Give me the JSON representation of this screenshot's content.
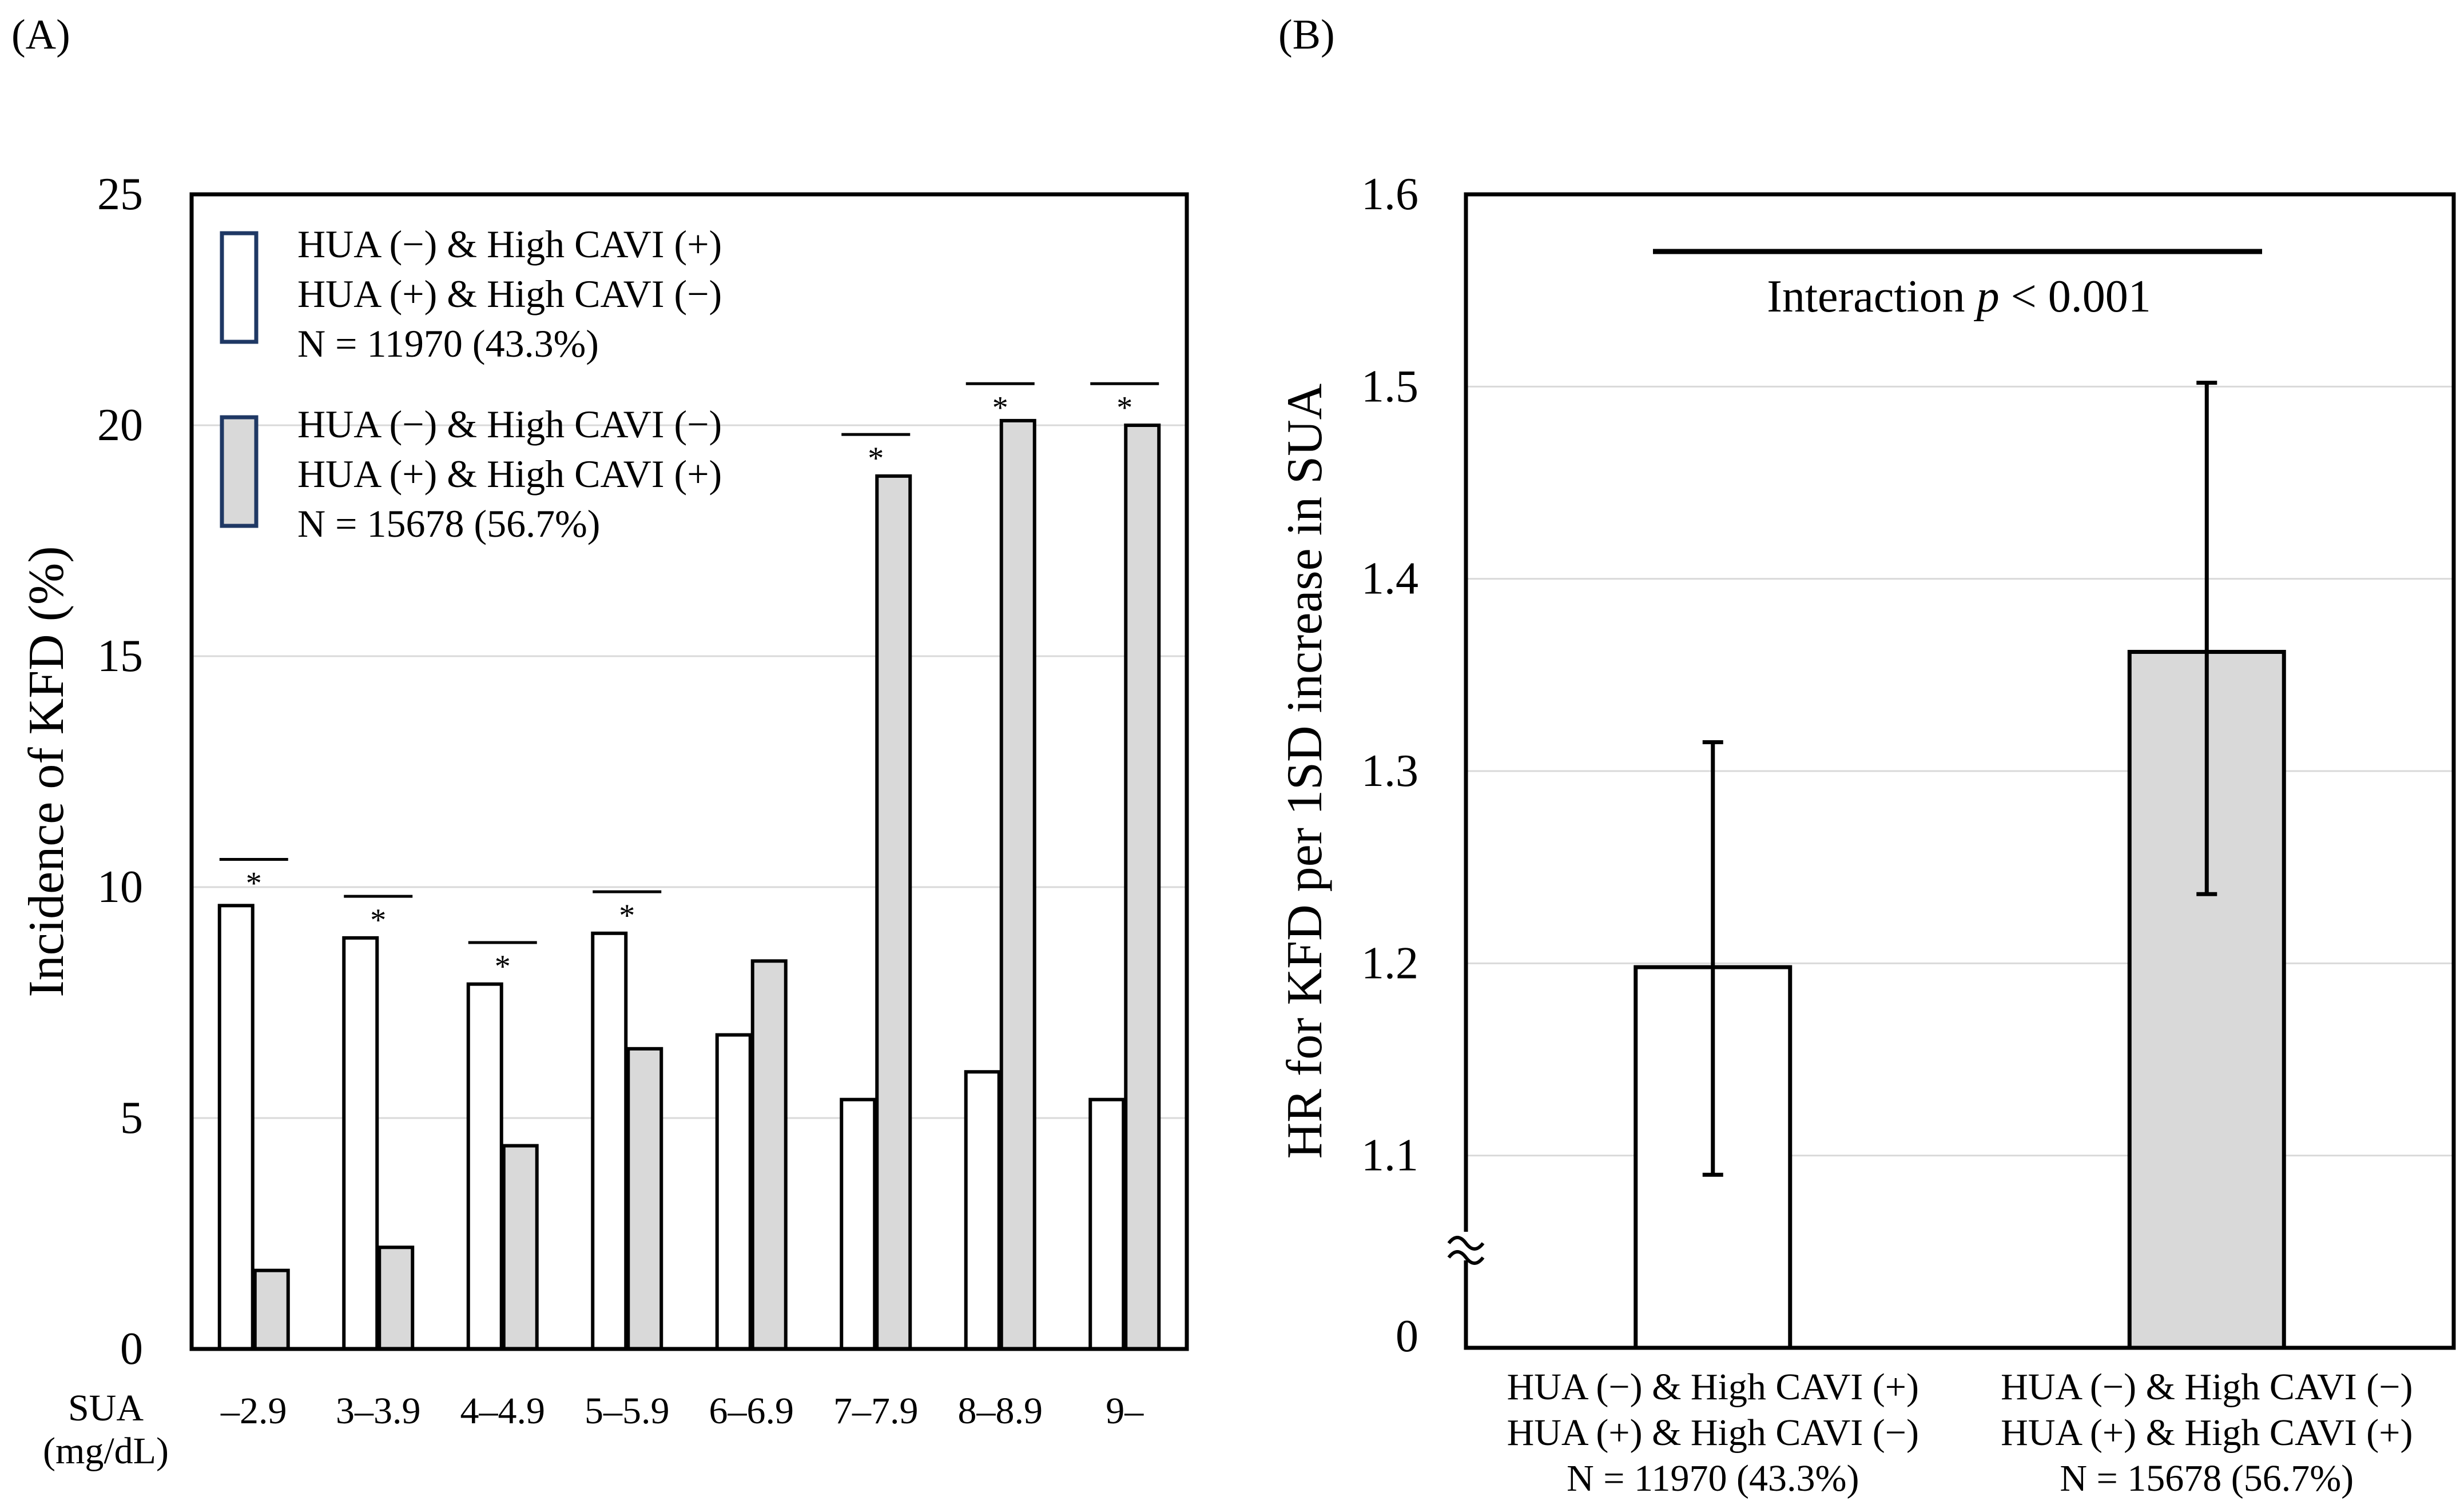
{
  "chart_data": [
    {
      "panel_label": "(A)",
      "type": "bar",
      "title": "",
      "xlabel": "SUA (mg/dL)",
      "xlabel_lines": [
        "SUA",
        "(mg/dL)"
      ],
      "ylabel": "Incidence of KFD (%)",
      "ylim": [
        0,
        25
      ],
      "yticks": [
        "0",
        "5",
        "10",
        "15",
        "20",
        "25"
      ],
      "grid": true,
      "legend_position": "top-left",
      "categories": [
        "–2.9",
        "3–3.9",
        "4–4.9",
        "5–5.9",
        "6–6.9",
        "7–7.9",
        "8–8.9",
        "9–"
      ],
      "series": [
        {
          "name": "HUA (−) & High CAVI (+) / HUA (+) & High CAVI (−)",
          "legend_lines": [
            "HUA (−) & High CAVI (+)",
            "HUA (+) & High CAVI (−)",
            "N = 11970 (43.3%)"
          ],
          "fill": "#ffffff",
          "values": [
            9.6,
            8.9,
            7.9,
            9.0,
            6.8,
            5.4,
            6.0,
            5.4
          ]
        },
        {
          "name": "HUA (−) & High CAVI (−) / HUA (+) & High CAVI (+)",
          "legend_lines": [
            "HUA (−) & High CAVI (−)",
            "HUA (+) & High CAVI (+)",
            "N = 15678 (56.7%)"
          ],
          "fill": "#d9d9d9",
          "values": [
            1.7,
            2.2,
            4.4,
            6.5,
            8.4,
            18.9,
            20.1,
            20.0
          ]
        }
      ],
      "significance": {
        "symbol": "*",
        "category_flags": [
          true,
          true,
          true,
          true,
          false,
          true,
          true,
          true
        ],
        "bar_levels": [
          10.6,
          9.8,
          8.8,
          9.9,
          null,
          19.8,
          20.9,
          20.9
        ]
      }
    },
    {
      "panel_label": "(B)",
      "type": "bar",
      "title": "",
      "ylabel": "HR for KFD per 1SD increase in SUA",
      "ylim": [
        1.0,
        1.6
      ],
      "yticks": [
        "0",
        "1.1",
        "1.2",
        "1.3",
        "1.4",
        "1.5",
        "1.6"
      ],
      "axis_break": true,
      "grid": true,
      "categories": [
        [
          "HUA (−) & High CAVI (+)",
          "HUA (+) & High CAVI (−)",
          "N = 11970 (43.3%)"
        ],
        [
          "HUA (−) & High CAVI (−)",
          "HUA (+) & High CAVI (+)",
          "N = 15678 (56.7%)"
        ]
      ],
      "values": [
        1.198,
        1.362
      ],
      "ci_lower": [
        1.09,
        1.236
      ],
      "ci_upper": [
        1.315,
        1.502
      ],
      "fills": [
        "#ffffff",
        "#d9d9d9"
      ],
      "annotation": {
        "prefix": "Interaction ",
        "p_symbol": "p",
        "suffix": " < 0.001"
      }
    }
  ]
}
